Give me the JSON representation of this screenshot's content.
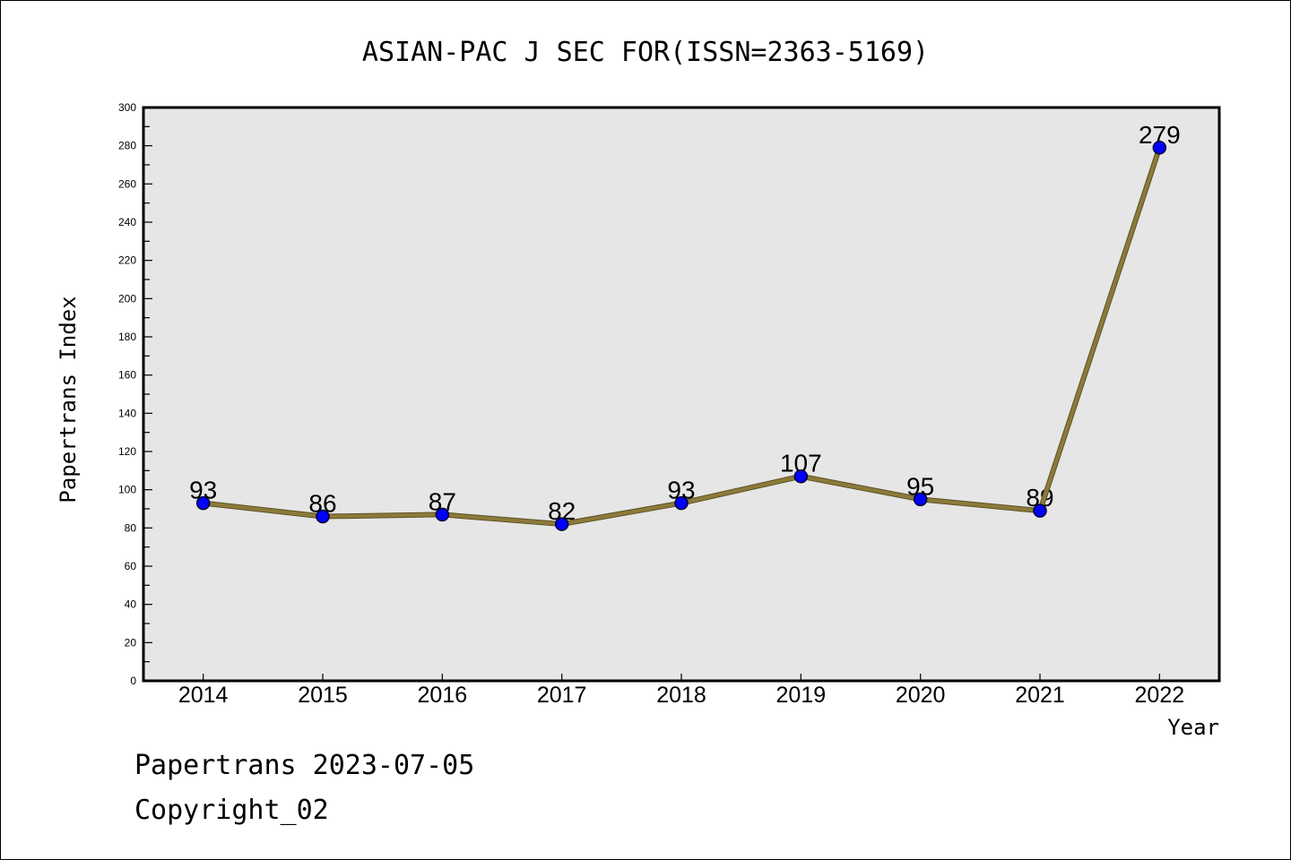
{
  "chart_data": {
    "type": "line",
    "title": "ASIAN-PAC J SEC FOR(ISSN=2363-5169)",
    "xlabel": "Year",
    "ylabel": "Papertrans Index",
    "categories": [
      "2014",
      "2015",
      "2016",
      "2017",
      "2018",
      "2019",
      "2020",
      "2021",
      "2022"
    ],
    "series": [
      {
        "values": [
          93,
          86,
          87,
          82,
          93,
          107,
          95,
          89,
          279
        ]
      }
    ],
    "ylim": [
      0,
      300
    ],
    "yticks": [
      0,
      20,
      40,
      60,
      80,
      100,
      120,
      140,
      160,
      180,
      200,
      220,
      240,
      260,
      280,
      300
    ],
    "data_labels": true,
    "grid": false,
    "legend": false,
    "colors": {
      "line": "#8b7a3a",
      "marker": "#0000ff",
      "plot_background": "#e6e6e6"
    }
  },
  "footer": {
    "source_line": "Papertrans 2023-07-05",
    "copyright_line": "Copyright_02"
  }
}
